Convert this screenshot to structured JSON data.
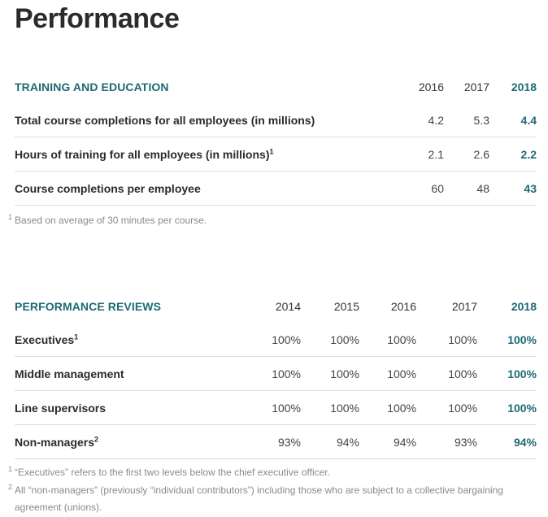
{
  "page": {
    "title": "Performance"
  },
  "training": {
    "section_title": "TRAINING AND EDUCATION",
    "years": [
      "2016",
      "2017",
      "2018"
    ],
    "rows": [
      {
        "label": "Total course completions for all employees (in millions)",
        "note": "",
        "values": [
          "4.2",
          "5.3",
          "4.4"
        ]
      },
      {
        "label": "Hours of training for all employees (in millions)",
        "note": "1",
        "values": [
          "2.1",
          "2.6",
          "2.2"
        ]
      },
      {
        "label": "Course completions per employee",
        "note": "",
        "values": [
          "60",
          "48",
          "43"
        ]
      }
    ],
    "footnotes": [
      {
        "mark": "1",
        "text": "Based on average of 30 minutes per course."
      }
    ]
  },
  "reviews": {
    "section_title": "PERFORMANCE REVIEWS",
    "years": [
      "2014",
      "2015",
      "2016",
      "2017",
      "2018"
    ],
    "rows": [
      {
        "label": "Executives",
        "note": "1",
        "values": [
          "100%",
          "100%",
          "100%",
          "100%",
          "100%"
        ]
      },
      {
        "label": "Middle management",
        "note": "",
        "values": [
          "100%",
          "100%",
          "100%",
          "100%",
          "100%"
        ]
      },
      {
        "label": "Line supervisors",
        "note": "",
        "values": [
          "100%",
          "100%",
          "100%",
          "100%",
          "100%"
        ]
      },
      {
        "label": "Non-managers",
        "note": "2",
        "values": [
          "93%",
          "94%",
          "94%",
          "93%",
          "94%"
        ]
      }
    ],
    "footnotes": [
      {
        "mark": "1",
        "text": "“Executives” refers to the first two levels below the chief executive officer."
      },
      {
        "mark": "2",
        "text": "All “non-managers” (previously “individual contributors”) including those who are subject to a collective bargaining agreement (unions)."
      }
    ]
  }
}
